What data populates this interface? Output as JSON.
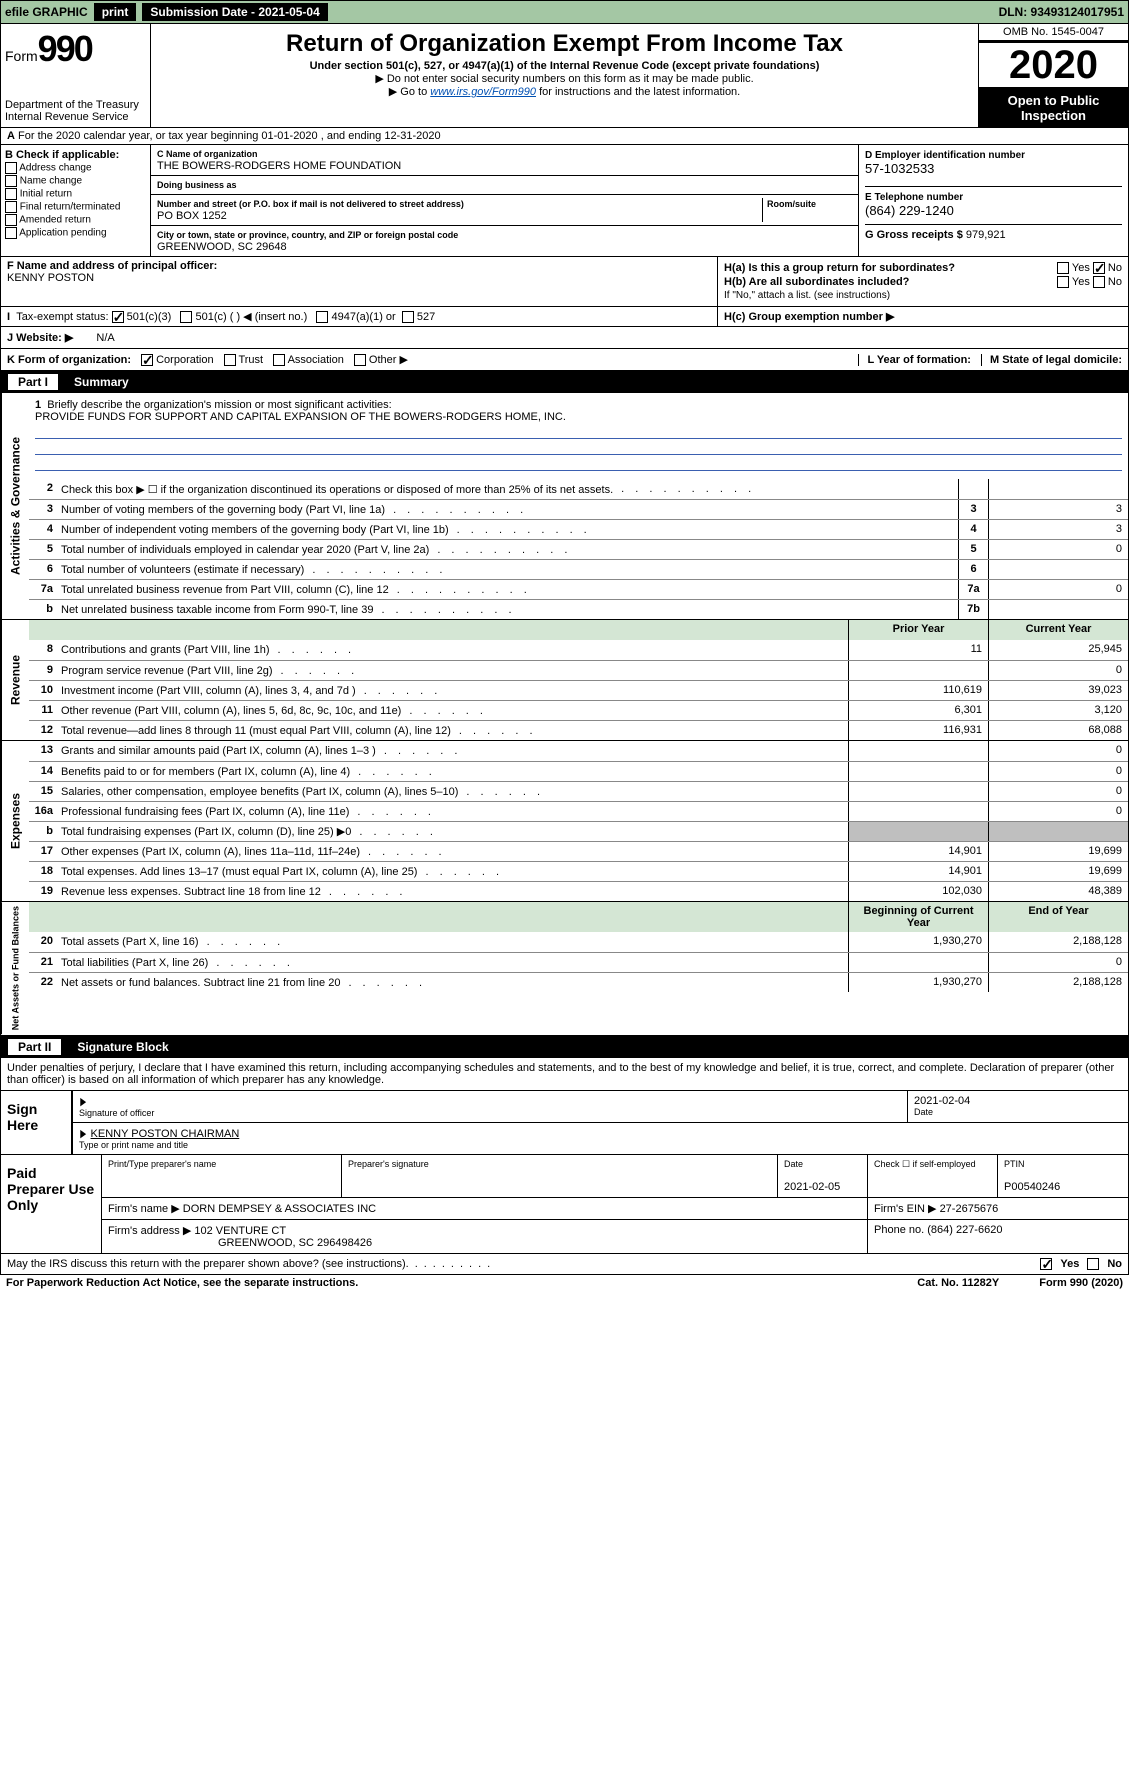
{
  "topbar": {
    "efile_label": "efile GRAPHIC",
    "print_btn": "print",
    "submission_label": "Submission Date - 2021-05-04",
    "dln": "DLN: 93493124017951"
  },
  "header": {
    "form_prefix": "Form",
    "form_number": "990",
    "dept1": "Department of the Treasury",
    "dept2": "Internal Revenue Service",
    "title": "Return of Organization Exempt From Income Tax",
    "sub": "Under section 501(c), 527, or 4947(a)(1) of the Internal Revenue Code (except private foundations)",
    "note1": "▶ Do not enter social security numbers on this form as it may be made public.",
    "note2_pre": "▶ Go to ",
    "note2_link": "www.irs.gov/Form990",
    "note2_post": " for instructions and the latest information.",
    "omb": "OMB No. 1545-0047",
    "year": "2020",
    "open": "Open to Public Inspection"
  },
  "row_a": "For the 2020 calendar year, or tax year beginning 01-01-2020   , and ending 12-31-2020",
  "col_b": {
    "lab": "B Check if applicable:",
    "opts": [
      "Address change",
      "Name change",
      "Initial return",
      "Final return/terminated",
      "Amended return",
      "Application pending"
    ]
  },
  "col_c": {
    "name_lab": "C Name of organization",
    "name_val": "THE BOWERS-RODGERS HOME FOUNDATION",
    "dba_lab": "Doing business as",
    "dba_val": "",
    "addr_lab": "Number and street (or P.O. box if mail is not delivered to street address)",
    "room_lab": "Room/suite",
    "addr_val": "PO BOX 1252",
    "city_lab": "City or town, state or province, country, and ZIP or foreign postal code",
    "city_val": "GREENWOOD, SC  29648"
  },
  "col_d": {
    "d_lab": "D Employer identification number",
    "d_val": "57-1032533",
    "e_lab": "E Telephone number",
    "e_val": "(864) 229-1240",
    "g_lab": "G Gross receipts $",
    "g_val": "979,921"
  },
  "block_fh": {
    "f_lab": "F  Name and address of principal officer:",
    "f_val": "KENNY POSTON",
    "ha": "H(a)  Is this a group return for subordinates?",
    "hb": "H(b)  Are all subordinates included?",
    "hb_note": "If \"No,\" attach a list. (see instructions)",
    "hc": "H(c)  Group exemption number ▶"
  },
  "status_row": {
    "i_lab": "Tax-exempt status:",
    "s1": "501(c)(3)",
    "s2": "501(c) (   ) ◀ (insert no.)",
    "s3": "4947(a)(1) or",
    "s4": "527"
  },
  "website_row": {
    "lab": "J   Website: ▶",
    "val": "N/A"
  },
  "korg": {
    "k_lab": "K Form of organization:",
    "opts": [
      "Corporation",
      "Trust",
      "Association",
      "Other ▶"
    ],
    "l_lab": "L Year of formation:",
    "m_lab": "M State of legal domicile:"
  },
  "part1": {
    "num": "Part I",
    "title": "Summary"
  },
  "briefly": {
    "num": "1",
    "lab": "Briefly describe the organization's mission or most significant activities:",
    "val": "PROVIDE FUNDS FOR SUPPORT AND CAPITAL EXPANSION OF THE BOWERS-RODGERS HOME, INC."
  },
  "gov_lines": [
    {
      "n": "2",
      "d": "Check this box ▶ ☐  if the organization discontinued its operations or disposed of more than 25% of its net assets.",
      "b": "",
      "v": ""
    },
    {
      "n": "3",
      "d": "Number of voting members of the governing body (Part VI, line 1a)",
      "b": "3",
      "v": "3"
    },
    {
      "n": "4",
      "d": "Number of independent voting members of the governing body (Part VI, line 1b)",
      "b": "4",
      "v": "3"
    },
    {
      "n": "5",
      "d": "Total number of individuals employed in calendar year 2020 (Part V, line 2a)",
      "b": "5",
      "v": "0"
    },
    {
      "n": "6",
      "d": "Total number of volunteers (estimate if necessary)",
      "b": "6",
      "v": ""
    },
    {
      "n": "7a",
      "d": "Total unrelated business revenue from Part VIII, column (C), line 12",
      "b": "7a",
      "v": "0"
    },
    {
      "n": "b",
      "d": "Net unrelated business taxable income from Form 990-T, line 39",
      "b": "7b",
      "v": ""
    }
  ],
  "rev_hdr": {
    "prior": "Prior Year",
    "curr": "Current Year"
  },
  "rev_lines": [
    {
      "n": "8",
      "d": "Contributions and grants (Part VIII, line 1h)",
      "p": "11",
      "c": "25,945"
    },
    {
      "n": "9",
      "d": "Program service revenue (Part VIII, line 2g)",
      "p": "",
      "c": "0"
    },
    {
      "n": "10",
      "d": "Investment income (Part VIII, column (A), lines 3, 4, and 7d )",
      "p": "110,619",
      "c": "39,023"
    },
    {
      "n": "11",
      "d": "Other revenue (Part VIII, column (A), lines 5, 6d, 8c, 9c, 10c, and 11e)",
      "p": "6,301",
      "c": "3,120"
    },
    {
      "n": "12",
      "d": "Total revenue—add lines 8 through 11 (must equal Part VIII, column (A), line 12)",
      "p": "116,931",
      "c": "68,088"
    }
  ],
  "exp_lines": [
    {
      "n": "13",
      "d": "Grants and similar amounts paid (Part IX, column (A), lines 1–3 )",
      "p": "",
      "c": "0"
    },
    {
      "n": "14",
      "d": "Benefits paid to or for members (Part IX, column (A), line 4)",
      "p": "",
      "c": "0"
    },
    {
      "n": "15",
      "d": "Salaries, other compensation, employee benefits (Part IX, column (A), lines 5–10)",
      "p": "",
      "c": "0"
    },
    {
      "n": "16a",
      "d": "Professional fundraising fees (Part IX, column (A), line 11e)",
      "p": "",
      "c": "0"
    },
    {
      "n": "b",
      "d": "Total fundraising expenses (Part IX, column (D), line 25) ▶0",
      "p": "SHADE",
      "c": "SHADE"
    },
    {
      "n": "17",
      "d": "Other expenses (Part IX, column (A), lines 11a–11d, 11f–24e)",
      "p": "14,901",
      "c": "19,699"
    },
    {
      "n": "18",
      "d": "Total expenses. Add lines 13–17 (must equal Part IX, column (A), line 25)",
      "p": "14,901",
      "c": "19,699"
    },
    {
      "n": "19",
      "d": "Revenue less expenses. Subtract line 18 from line 12",
      "p": "102,030",
      "c": "48,389"
    }
  ],
  "net_hdr": {
    "prior": "Beginning of Current Year",
    "curr": "End of Year"
  },
  "net_lines": [
    {
      "n": "20",
      "d": "Total assets (Part X, line 16)",
      "p": "1,930,270",
      "c": "2,188,128"
    },
    {
      "n": "21",
      "d": "Total liabilities (Part X, line 26)",
      "p": "",
      "c": "0"
    },
    {
      "n": "22",
      "d": "Net assets or fund balances. Subtract line 21 from line 20",
      "p": "1,930,270",
      "c": "2,188,128"
    }
  ],
  "side_labels": {
    "gov": "Activities & Governance",
    "rev": "Revenue",
    "exp": "Expenses",
    "net": "Net Assets or Fund Balances"
  },
  "part2": {
    "num": "Part II",
    "title": "Signature Block"
  },
  "sig": {
    "perjury": "Under penalties of perjury, I declare that I have examined this return, including accompanying schedules and statements, and to the best of my knowledge and belief, it is true, correct, and complete. Declaration of preparer (other than officer) is based on all information of which preparer has any knowledge.",
    "sign_here": "Sign Here",
    "sig_officer_lab": "Signature of officer",
    "date": "2021-02-04",
    "date_lab": "Date",
    "name_title": "KENNY POSTON  CHAIRMAN",
    "name_lab": "Type or print name and title",
    "paid": "Paid Preparer Use Only",
    "prep_name_lab": "Print/Type preparer's name",
    "prep_sig_lab": "Preparer's signature",
    "prep_date_lab": "Date",
    "prep_date": "2021-02-05",
    "check_lab": "Check ☐ if self-employed",
    "ptin_lab": "PTIN",
    "ptin": "P00540246",
    "firm_name_lab": "Firm's name      ▶",
    "firm_name": "DORN DEMPSEY & ASSOCIATES INC",
    "firm_ein_lab": "Firm's EIN ▶",
    "firm_ein": "27-2675676",
    "firm_addr_lab": "Firm's address ▶",
    "firm_addr1": "102 VENTURE CT",
    "firm_addr2": "GREENWOOD, SC  296498426",
    "phone_lab": "Phone no.",
    "phone": "(864) 227-6620"
  },
  "foot": {
    "discuss": "May the IRS discuss this return with the preparer shown above? (see instructions)",
    "yes": "Yes",
    "no": "No",
    "paperwork": "For Paperwork Reduction Act Notice, see the separate instructions.",
    "cat": "Cat. No. 11282Y",
    "form": "Form 990 (2020)"
  },
  "colors": {
    "green": "#a4c7a4",
    "hdrgreen": "#d4e6d4",
    "blue": "#3a5fb0",
    "gray": "#bfbfbf"
  }
}
